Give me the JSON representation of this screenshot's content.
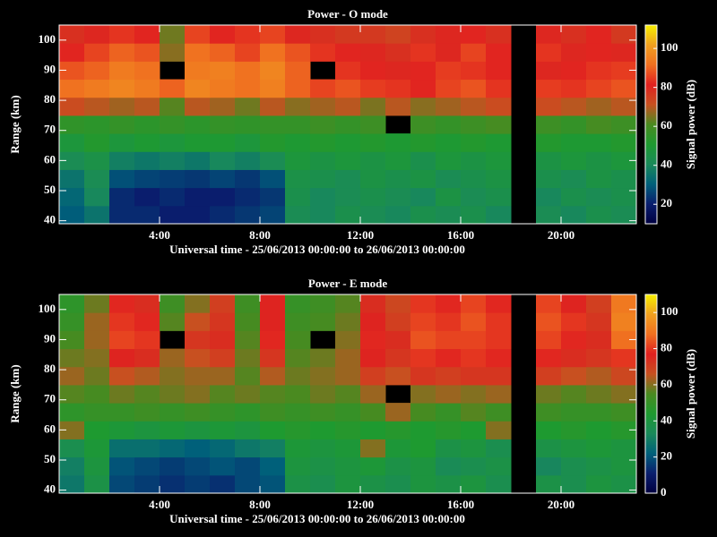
{
  "chart_data": [
    {
      "type": "heatmap",
      "title": "Power - O mode",
      "xlabel": "Universal time - 25/06/2013 00:00:00 to 26/06/2013 00:00:00",
      "ylabel": "Range (km)",
      "colorbar_label": "Signal power (dB)",
      "xbins": [
        0,
        1,
        2,
        3,
        4,
        5,
        6,
        7,
        8,
        9,
        10,
        11,
        12,
        13,
        14,
        15,
        16,
        17,
        18,
        19,
        20,
        21,
        22,
        23
      ],
      "ybins": [
        39,
        45,
        51,
        57,
        63,
        69,
        75,
        81,
        87,
        93,
        99,
        105
      ],
      "z": [
        [
          30,
          35,
          22,
          22,
          20,
          20,
          22,
          24,
          26,
          42,
          40,
          44,
          42,
          40,
          44,
          42,
          44,
          40,
          null,
          42,
          40,
          44,
          42
        ],
        [
          32,
          40,
          22,
          20,
          22,
          20,
          20,
          22,
          24,
          44,
          40,
          42,
          44,
          42,
          40,
          46,
          42,
          44,
          null,
          40,
          44,
          42,
          44
        ],
        [
          35,
          42,
          28,
          26,
          25,
          24,
          26,
          24,
          28,
          45,
          44,
          42,
          46,
          44,
          46,
          42,
          44,
          46,
          null,
          44,
          42,
          46,
          44
        ],
        [
          42,
          45,
          38,
          36,
          38,
          36,
          40,
          38,
          42,
          48,
          46,
          48,
          46,
          48,
          44,
          48,
          46,
          48,
          null,
          46,
          48,
          46,
          48
        ],
        [
          48,
          52,
          48,
          50,
          48,
          50,
          50,
          48,
          52,
          50,
          52,
          50,
          52,
          50,
          52,
          50,
          52,
          50,
          null,
          52,
          50,
          50,
          52
        ],
        [
          55,
          54,
          56,
          54,
          56,
          54,
          56,
          55,
          56,
          56,
          58,
          56,
          58,
          null,
          58,
          56,
          58,
          60,
          null,
          58,
          56,
          60,
          58
        ],
        [
          72,
          70,
          68,
          70,
          62,
          70,
          68,
          64,
          70,
          66,
          68,
          70,
          65,
          70,
          66,
          68,
          70,
          72,
          null,
          72,
          70,
          68,
          70
        ],
        [
          92,
          94,
          96,
          94,
          90,
          96,
          94,
          92,
          95,
          90,
          86,
          88,
          85,
          84,
          82,
          86,
          88,
          84,
          null,
          85,
          84,
          86,
          88
        ],
        [
          88,
          90,
          94,
          92,
          null,
          94,
          95,
          92,
          96,
          90,
          null,
          84,
          82,
          80,
          82,
          85,
          84,
          82,
          null,
          80,
          82,
          84,
          85
        ],
        [
          82,
          86,
          90,
          88,
          66,
          92,
          90,
          86,
          92,
          88,
          84,
          82,
          80,
          78,
          84,
          80,
          86,
          82,
          null,
          84,
          80,
          82,
          80
        ],
        [
          78,
          80,
          84,
          82,
          64,
          86,
          82,
          84,
          86,
          80,
          78,
          76,
          76,
          74,
          78,
          80,
          82,
          78,
          null,
          80,
          78,
          82,
          76
        ]
      ],
      "xlim": [
        0,
        23
      ],
      "xticks": [
        {
          "value": 4,
          "label": "4:00"
        },
        {
          "value": 8,
          "label": "8:00"
        },
        {
          "value": 12,
          "label": "12:00"
        },
        {
          "value": 16,
          "label": "16:00"
        },
        {
          "value": 20,
          "label": "20:00"
        }
      ],
      "ylim": [
        39,
        105
      ],
      "yticks": [
        40,
        50,
        60,
        70,
        80,
        90,
        100
      ],
      "zlim": [
        10,
        112
      ],
      "zticks": [
        20,
        40,
        60,
        80,
        100
      ],
      "colormap": [
        "#000040",
        "#0a1e6e",
        "#00607a",
        "#1a8a5a",
        "#1e9a30",
        "#4a8a20",
        "#c85020",
        "#e02020",
        "#f07020",
        "#f0a020",
        "#f8f000"
      ]
    },
    {
      "type": "heatmap",
      "title": "Power - E mode",
      "xlabel": "Universal time - 25/06/2013 00:00:00 to 26/06/2013 00:00:00",
      "ylabel": "Range (km)",
      "colorbar_label": "Signal power (dB)",
      "xbins": [
        0,
        1,
        2,
        3,
        4,
        5,
        6,
        7,
        8,
        9,
        10,
        11,
        12,
        13,
        14,
        15,
        16,
        17,
        18,
        19,
        20,
        21,
        22,
        23
      ],
      "ybins": [
        39,
        45,
        51,
        57,
        63,
        69,
        75,
        81,
        87,
        93,
        99,
        105
      ],
      "z": [
        [
          28,
          38,
          18,
          16,
          14,
          16,
          14,
          18,
          20,
          38,
          36,
          40,
          38,
          36,
          40,
          38,
          40,
          36,
          null,
          38,
          36,
          40,
          38
        ],
        [
          30,
          40,
          20,
          18,
          16,
          18,
          20,
          18,
          22,
          40,
          38,
          40,
          42,
          38,
          40,
          34,
          36,
          38,
          null,
          32,
          36,
          38,
          40
        ],
        [
          36,
          42,
          26,
          26,
          24,
          22,
          24,
          28,
          30,
          42,
          40,
          42,
          60,
          42,
          44,
          38,
          40,
          36,
          null,
          38,
          40,
          42,
          40
        ],
        [
          60,
          44,
          42,
          40,
          42,
          40,
          42,
          40,
          44,
          46,
          44,
          46,
          44,
          46,
          44,
          46,
          44,
          60,
          null,
          44,
          46,
          44,
          46
        ],
        [
          48,
          50,
          50,
          52,
          50,
          52,
          50,
          48,
          52,
          50,
          52,
          50,
          54,
          62,
          54,
          50,
          56,
          52,
          null,
          52,
          50,
          50,
          52
        ],
        [
          56,
          54,
          58,
          56,
          58,
          60,
          56,
          58,
          56,
          55,
          58,
          56,
          62,
          null,
          60,
          62,
          60,
          62,
          null,
          58,
          56,
          58,
          60
        ],
        [
          62,
          58,
          66,
          64,
          60,
          62,
          62,
          56,
          64,
          58,
          60,
          62,
          70,
          66,
          72,
          70,
          72,
          72,
          null,
          70,
          66,
          64,
          68
        ],
        [
          58,
          60,
          76,
          74,
          62,
          66,
          70,
          58,
          72,
          56,
          58,
          62,
          76,
          72,
          80,
          78,
          80,
          78,
          null,
          78,
          74,
          72,
          80
        ],
        [
          54,
          62,
          82,
          80,
          null,
          72,
          74,
          56,
          78,
          54,
          null,
          60,
          78,
          74,
          84,
          82,
          82,
          80,
          null,
          82,
          78,
          74,
          88
        ],
        [
          50,
          62,
          80,
          78,
          56,
          66,
          72,
          54,
          76,
          52,
          54,
          58,
          76,
          70,
          82,
          80,
          84,
          80,
          null,
          84,
          80,
          72,
          92
        ],
        [
          48,
          58,
          78,
          74,
          52,
          60,
          70,
          52,
          76,
          50,
          52,
          56,
          74,
          68,
          80,
          78,
          82,
          78,
          null,
          82,
          76,
          70,
          90
        ]
      ],
      "xlim": [
        0,
        23
      ],
      "xticks": [
        {
          "value": 4,
          "label": "4:00"
        },
        {
          "value": 8,
          "label": "8:00"
        },
        {
          "value": 12,
          "label": "12:00"
        },
        {
          "value": 16,
          "label": "16:00"
        },
        {
          "value": 20,
          "label": "20:00"
        }
      ],
      "ylim": [
        39,
        105
      ],
      "yticks": [
        40,
        50,
        60,
        70,
        80,
        90,
        100
      ],
      "zlim": [
        0,
        110
      ],
      "zticks": [
        0,
        20,
        40,
        60,
        80,
        100
      ],
      "colormap": [
        "#000040",
        "#0a1e6e",
        "#00607a",
        "#1a8a5a",
        "#1e9a30",
        "#4a8a20",
        "#c85020",
        "#e02020",
        "#f07020",
        "#f0a020",
        "#f8f000"
      ]
    }
  ]
}
